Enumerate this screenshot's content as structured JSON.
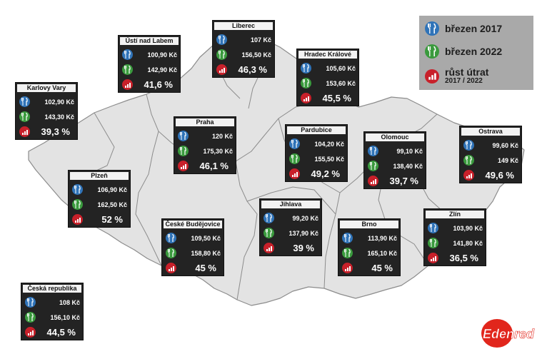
{
  "legend": {
    "items": [
      {
        "text": "březen 2017",
        "icon": "fork-knife-icon",
        "color": "#2f73b8"
      },
      {
        "text": "březen 2022",
        "icon": "fork-knife-icon",
        "color": "#3a9a3d"
      },
      {
        "text": "růst útrat",
        "sub": "2017 / 2022",
        "icon": "growth-chart-icon",
        "color": "#c8202a"
      }
    ]
  },
  "logo": {
    "text": "Edenred",
    "color": "#e1261c"
  },
  "regions": {
    "usti": {
      "name": "Ústí nad Labem",
      "v2017": "100,90 Kč",
      "v2022": "142,90 Kč",
      "growth": "41,6 %"
    },
    "liberec": {
      "name": "Liberec",
      "v2017": "107 Kč",
      "v2022": "156,50 Kč",
      "growth": "46,3 %"
    },
    "hradec": {
      "name": "Hradec Králové",
      "v2017": "105,60 Kč",
      "v2022": "153,60 Kč",
      "growth": "45,5 %"
    },
    "karlovy": {
      "name": "Karlovy Vary",
      "v2017": "102,90 Kč",
      "v2022": "143,30 Kč",
      "growth": "39,3 %"
    },
    "praha": {
      "name": "Praha",
      "v2017": "120 Kč",
      "v2022": "175,30 Kč",
      "growth": "46,1 %"
    },
    "pardubice": {
      "name": "Pardubice",
      "v2017": "104,20 Kč",
      "v2022": "155,50 Kč",
      "growth": "49,2 %"
    },
    "olomouc": {
      "name": "Olomouc",
      "v2017": "99,10 Kč",
      "v2022": "138,40 Kč",
      "growth": "39,7 %"
    },
    "ostrava": {
      "name": "Ostrava",
      "v2017": "99,60 Kč",
      "v2022": "149 Kč",
      "growth": "49,6 %"
    },
    "plzen": {
      "name": "Plzeň",
      "v2017": "106,90 Kč",
      "v2022": "162,50 Kč",
      "growth": "52 %"
    },
    "jihlava": {
      "name": "Jihlava",
      "v2017": "99,20 Kč",
      "v2022": "137,90 Kč",
      "growth": "39 %"
    },
    "budejovice": {
      "name": "České Budějovice",
      "v2017": "109,50 Kč",
      "v2022": "158,80 Kč",
      "growth": "45 %"
    },
    "brno": {
      "name": "Brno",
      "v2017": "113,90 Kč",
      "v2022": "165,10 Kč",
      "growth": "45 %"
    },
    "zlin": {
      "name": "Zlín",
      "v2017": "103,90 Kč",
      "v2022": "141,80 Kč",
      "growth": "36,5 %"
    },
    "cr": {
      "name": "Česká republika",
      "v2017": "108 Kč",
      "v2022": "156,10 Kč",
      "growth": "44,5 %"
    }
  },
  "colors": {
    "map_fill": "#e3e3e3",
    "map_stroke": "#8c8c8c",
    "card_bg": "#232323"
  }
}
